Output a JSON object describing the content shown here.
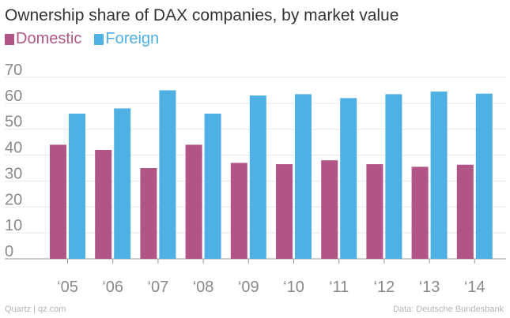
{
  "chart_data": {
    "type": "bar",
    "title": "Ownership share of DAX companies, by market value",
    "categories": [
      "‘05",
      "‘06",
      "‘07",
      "‘08",
      "‘09",
      "‘10",
      "‘11",
      "‘12",
      "‘13",
      "‘14"
    ],
    "series": [
      {
        "name": "Domestic",
        "color": "#b05586",
        "values": [
          44,
          42,
          35,
          44,
          37,
          36.5,
          38,
          36.5,
          35.5,
          36.3
        ]
      },
      {
        "name": "Foreign",
        "color": "#4fb0e3",
        "values": [
          56,
          58,
          65,
          56,
          63,
          63.5,
          62,
          63.5,
          64.5,
          63.7
        ]
      }
    ],
    "ylim": [
      0,
      70
    ],
    "yticks": [
      0,
      10,
      20,
      30,
      40,
      50,
      60,
      70
    ],
    "xlabel": "",
    "ylabel": "",
    "grid": true,
    "legend": "top-left"
  },
  "footer": {
    "source_left": "Quartz | qz.com",
    "source_right": "Data: Deutsche Bundesbank"
  },
  "colors": {
    "grid": "#e6e6e6",
    "axis": "#999999",
    "tick_text": "#8a8a8a"
  }
}
